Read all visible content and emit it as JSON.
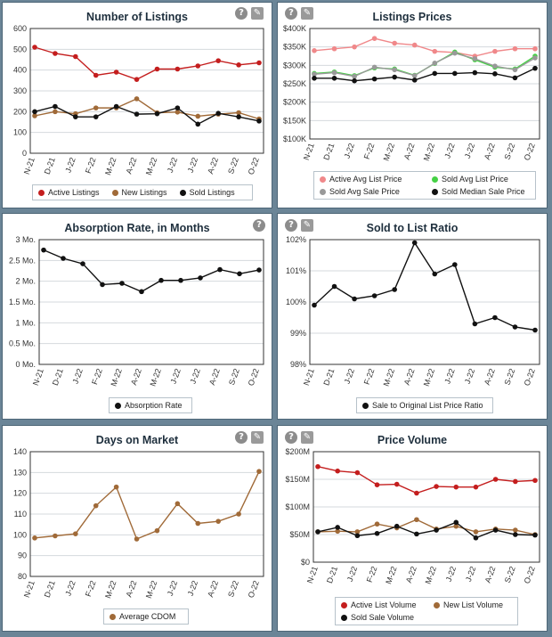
{
  "chart_data": [
    {
      "id": "listings",
      "type": "line",
      "title": "Number of Listings",
      "categories": [
        "N-21",
        "D-21",
        "J-22",
        "F-22",
        "M-22",
        "A-22",
        "M-22",
        "J-22",
        "J-22",
        "A-22",
        "S-22",
        "O-22"
      ],
      "ylim": [
        0,
        600
      ],
      "yticks": [
        0,
        100,
        200,
        300,
        400,
        500,
        600
      ],
      "ytick_labels": [
        "0",
        "100",
        "200",
        "300",
        "400",
        "500",
        "600"
      ],
      "series": [
        {
          "name": "Active Listings",
          "color": "#c41e1e",
          "values": [
            510,
            480,
            465,
            375,
            390,
            355,
            405,
            405,
            420,
            445,
            425,
            435
          ]
        },
        {
          "name": "New Listings",
          "color": "#a06a38",
          "values": [
            180,
            200,
            190,
            218,
            218,
            262,
            195,
            198,
            178,
            188,
            195,
            165
          ]
        },
        {
          "name": "Sold Listings",
          "color": "#111111",
          "values": [
            200,
            225,
            175,
            175,
            225,
            188,
            190,
            218,
            140,
            192,
            175,
            155
          ]
        }
      ]
    },
    {
      "id": "prices",
      "type": "line",
      "title": "Listings Prices",
      "categories": [
        "N-21",
        "D-21",
        "J-22",
        "F-22",
        "M-22",
        "A-22",
        "M-22",
        "J-22",
        "J-22",
        "A-22",
        "S-22",
        "O-22"
      ],
      "ylim": [
        100,
        400
      ],
      "yticks": [
        100,
        150,
        200,
        250,
        300,
        350,
        400
      ],
      "ytick_labels": [
        "$100K",
        "$150K",
        "$200K",
        "$250K",
        "$300K",
        "$350K",
        "$400K"
      ],
      "series": [
        {
          "name": "Active Avg List Price",
          "color": "#f0888a",
          "values": [
            340,
            345,
            350,
            373,
            360,
            355,
            338,
            335,
            325,
            338,
            345,
            345
          ]
        },
        {
          "name": "Sold Avg List Price",
          "color": "#45d145",
          "values": [
            278,
            282,
            272,
            293,
            290,
            273,
            305,
            336,
            315,
            295,
            290,
            325
          ]
        },
        {
          "name": "Sold Avg Sale Price",
          "color": "#999999",
          "values": [
            276,
            280,
            270,
            295,
            288,
            272,
            306,
            333,
            318,
            298,
            288,
            320
          ]
        },
        {
          "name": "Sold Median Sale Price",
          "color": "#111111",
          "values": [
            265,
            265,
            258,
            263,
            268,
            260,
            278,
            278,
            280,
            277,
            266,
            292
          ]
        }
      ]
    },
    {
      "id": "absorption",
      "type": "line",
      "title": "Absorption Rate, in Months",
      "categories": [
        "N-21",
        "D-21",
        "J-22",
        "F-22",
        "M-22",
        "A-22",
        "M-22",
        "J-22",
        "J-22",
        "A-22",
        "S-22",
        "O-22"
      ],
      "ylim": [
        0,
        3
      ],
      "yticks": [
        0,
        0.5,
        1,
        1.5,
        2,
        2.5,
        3
      ],
      "ytick_labels": [
        "0 Mo.",
        "0.5 Mo.",
        "1 Mo.",
        "1.5 Mo.",
        "2 Mo.",
        "2.5 Mo.",
        "3 Mo."
      ],
      "series": [
        {
          "name": "Absorption Rate",
          "color": "#111111",
          "values": [
            2.75,
            2.55,
            2.42,
            1.92,
            1.95,
            1.75,
            2.02,
            2.02,
            2.08,
            2.28,
            2.18,
            2.27
          ]
        }
      ]
    },
    {
      "id": "ratio",
      "type": "line",
      "title": "Sold to List Ratio",
      "categories": [
        "N-21",
        "D-21",
        "J-22",
        "F-22",
        "M-22",
        "A-22",
        "M-22",
        "J-22",
        "J-22",
        "A-22",
        "S-22",
        "O-22"
      ],
      "ylim": [
        98,
        102
      ],
      "yticks": [
        98,
        99,
        100,
        101,
        102
      ],
      "ytick_labels": [
        "98%",
        "99%",
        "100%",
        "101%",
        "102%"
      ],
      "series": [
        {
          "name": "Sale to Original List Price Ratio",
          "color": "#111111",
          "values": [
            99.9,
            100.5,
            100.1,
            100.2,
            100.4,
            101.9,
            100.9,
            101.2,
            99.3,
            99.5,
            99.2,
            99.1
          ]
        }
      ]
    },
    {
      "id": "dom",
      "type": "line",
      "title": "Days on Market",
      "categories": [
        "N-21",
        "D-21",
        "J-22",
        "F-22",
        "M-22",
        "A-22",
        "M-22",
        "J-22",
        "J-22",
        "A-22",
        "S-22",
        "O-22"
      ],
      "ylim": [
        80,
        140
      ],
      "yticks": [
        80,
        90,
        100,
        110,
        120,
        130,
        140
      ],
      "ytick_labels": [
        "80",
        "90",
        "100",
        "110",
        "120",
        "130",
        "140"
      ],
      "series": [
        {
          "name": "Average CDOM",
          "color": "#a06a38",
          "values": [
            98.5,
            99.5,
            100.5,
            114,
            123,
            98,
            102,
            115,
            105.5,
            106.5,
            110,
            130.5
          ]
        }
      ]
    },
    {
      "id": "volume",
      "type": "line",
      "title": "Price Volume",
      "categories": [
        "N-21",
        "D-21",
        "J-22",
        "F-22",
        "M-22",
        "A-22",
        "M-22",
        "J-22",
        "J-22",
        "A-22",
        "S-22",
        "O-22"
      ],
      "ylim": [
        0,
        200
      ],
      "yticks": [
        0,
        50,
        100,
        150,
        200
      ],
      "ytick_labels": [
        "$0",
        "$50M",
        "$100M",
        "$150M",
        "$200M"
      ],
      "series": [
        {
          "name": "Active List Volume",
          "color": "#c41e1e",
          "values": [
            173,
            165,
            162,
            140,
            141,
            125,
            137,
            136,
            136,
            150,
            146,
            148
          ]
        },
        {
          "name": "New List Volume",
          "color": "#a06a38",
          "values": [
            55,
            56,
            55,
            69,
            62,
            77,
            60,
            65,
            55,
            60,
            58,
            50
          ]
        },
        {
          "name": "Sold Sale Volume",
          "color": "#111111",
          "values": [
            55,
            63,
            48,
            52,
            65,
            51,
            58,
            72,
            44,
            58,
            50,
            49
          ]
        }
      ]
    }
  ],
  "icons": {
    "info": "info-icon",
    "settings": "wrench-icon"
  },
  "icon_glyphs": {
    "info": "?",
    "settings": "✎"
  }
}
